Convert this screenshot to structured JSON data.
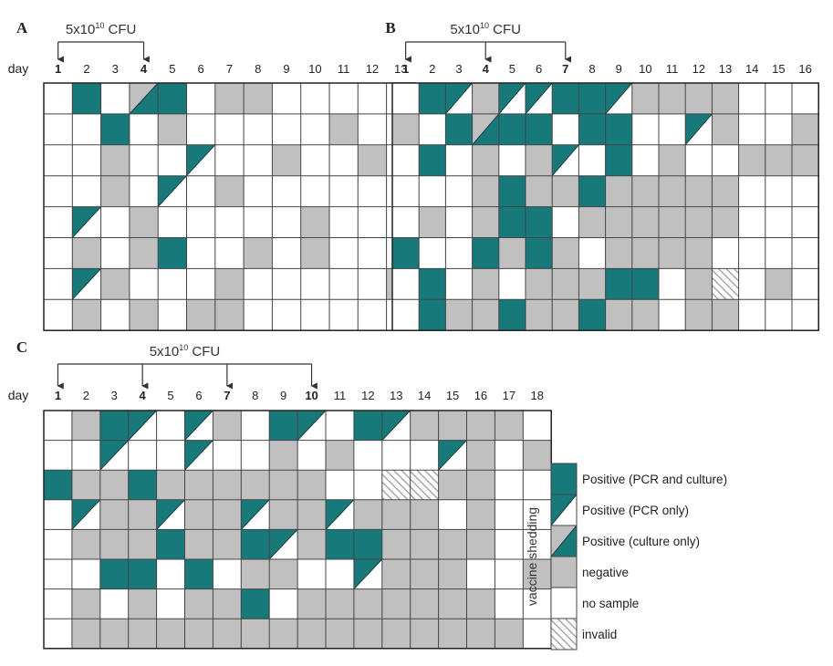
{
  "legend": {
    "side_label": "vaccine shedding",
    "items": [
      {
        "key": "P",
        "label": "Positive (PCR and culture)"
      },
      {
        "key": "R",
        "label": "Positive (PCR only)"
      },
      {
        "key": "C",
        "label": "Positive (culture only)"
      },
      {
        "key": "N",
        "label": "negative"
      },
      {
        "key": "W",
        "label": "no sample"
      },
      {
        "key": "I",
        "label": "invalid"
      }
    ]
  },
  "colors": {
    "positive": "#17797a",
    "negative": "#c0c0c0",
    "no_sample": "#ffffff",
    "grid": "#444444",
    "invalid_hatch": "#9a9a9a"
  },
  "panels": [
    {
      "letter": "A",
      "day_label": "day",
      "dose_text": "5x10",
      "dose_exp": "10",
      "dose_unit": "CFU",
      "dose_days": [
        1,
        4
      ],
      "days": [
        "1",
        "2",
        "3",
        "4",
        "5",
        "6",
        "7",
        "8",
        "9",
        "10",
        "11",
        "12",
        "13"
      ],
      "rows": [
        [
          "W",
          "P",
          "W",
          "C",
          "P",
          "W",
          "N",
          "N",
          "W",
          "W",
          "W",
          "W",
          "W"
        ],
        [
          "W",
          "W",
          "P",
          "W",
          "N",
          "W",
          "W",
          "W",
          "W",
          "W",
          "N",
          "W",
          "W"
        ],
        [
          "W",
          "W",
          "N",
          "W",
          "W",
          "R",
          "W",
          "W",
          "N",
          "W",
          "W",
          "N",
          "W"
        ],
        [
          "W",
          "W",
          "N",
          "W",
          "R",
          "W",
          "N",
          "W",
          "W",
          "W",
          "W",
          "W",
          "W"
        ],
        [
          "W",
          "R",
          "W",
          "N",
          "W",
          "W",
          "W",
          "W",
          "W",
          "N",
          "W",
          "W",
          "W"
        ],
        [
          "W",
          "N",
          "W",
          "N",
          "P",
          "W",
          "W",
          "N",
          "W",
          "N",
          "W",
          "W",
          "W"
        ],
        [
          "W",
          "R",
          "N",
          "W",
          "W",
          "W",
          "N",
          "W",
          "W",
          "W",
          "W",
          "W",
          "N"
        ],
        [
          "W",
          "N",
          "W",
          "N",
          "W",
          "N",
          "N",
          "W",
          "W",
          "W",
          "W",
          "W",
          "W"
        ]
      ]
    },
    {
      "letter": "B",
      "day_label": "",
      "dose_text": "5x10",
      "dose_exp": "10",
      "dose_unit": "CFU",
      "dose_days": [
        1,
        4,
        7
      ],
      "days": [
        "1",
        "2",
        "3",
        "4",
        "5",
        "6",
        "7",
        "8",
        "9",
        "10",
        "11",
        "12",
        "13",
        "14",
        "15",
        "16"
      ],
      "rows": [
        [
          "W",
          "P",
          "R",
          "N",
          "R",
          "R",
          "P",
          "P",
          "R",
          "N",
          "N",
          "N",
          "N",
          "W",
          "W",
          "W"
        ],
        [
          "N",
          "W",
          "P",
          "C",
          "P",
          "P",
          "W",
          "P",
          "P",
          "W",
          "W",
          "R",
          "N",
          "W",
          "W",
          "N"
        ],
        [
          "W",
          "P",
          "W",
          "N",
          "W",
          "N",
          "R",
          "W",
          "P",
          "W",
          "N",
          "W",
          "W",
          "N",
          "N",
          "N"
        ],
        [
          "W",
          "W",
          "W",
          "N",
          "P",
          "N",
          "N",
          "P",
          "N",
          "N",
          "N",
          "N",
          "N",
          "W",
          "W",
          "W"
        ],
        [
          "W",
          "N",
          "W",
          "N",
          "P",
          "P",
          "W",
          "N",
          "N",
          "N",
          "N",
          "N",
          "N",
          "W",
          "W",
          "W"
        ],
        [
          "P",
          "W",
          "W",
          "P",
          "N",
          "P",
          "N",
          "W",
          "N",
          "N",
          "N",
          "N",
          "W",
          "W",
          "W",
          "W"
        ],
        [
          "W",
          "P",
          "W",
          "N",
          "W",
          "N",
          "N",
          "N",
          "P",
          "P",
          "W",
          "N",
          "I",
          "W",
          "N",
          "W"
        ],
        [
          "W",
          "P",
          "N",
          "N",
          "P",
          "N",
          "N",
          "P",
          "N",
          "N",
          "W",
          "N",
          "N",
          "W",
          "W",
          "W"
        ]
      ]
    },
    {
      "letter": "C",
      "day_label": "day",
      "dose_text": "5x10",
      "dose_exp": "10",
      "dose_unit": "CFU",
      "dose_days": [
        1,
        4,
        7,
        10
      ],
      "days": [
        "1",
        "2",
        "3",
        "4",
        "5",
        "6",
        "7",
        "8",
        "9",
        "10",
        "11",
        "12",
        "13",
        "14",
        "15",
        "16",
        "17",
        "18"
      ],
      "rows": [
        [
          "W",
          "N",
          "P",
          "R",
          "W",
          "R",
          "N",
          "W",
          "P",
          "R",
          "W",
          "P",
          "R",
          "N",
          "N",
          "N",
          "N",
          "W"
        ],
        [
          "W",
          "W",
          "R",
          "W",
          "W",
          "R",
          "W",
          "W",
          "N",
          "W",
          "N",
          "W",
          "W",
          "W",
          "R",
          "N",
          "W",
          "N"
        ],
        [
          "P",
          "N",
          "N",
          "P",
          "N",
          "N",
          "N",
          "N",
          "N",
          "N",
          "W",
          "W",
          "I",
          "I",
          "N",
          "N",
          "W",
          "W"
        ],
        [
          "W",
          "R",
          "N",
          "N",
          "R",
          "N",
          "N",
          "R",
          "N",
          "N",
          "R",
          "N",
          "N",
          "N",
          "W",
          "N",
          "W",
          "W"
        ],
        [
          "W",
          "N",
          "N",
          "N",
          "P",
          "N",
          "N",
          "P",
          "R",
          "N",
          "P",
          "P",
          "N",
          "N",
          "N",
          "N",
          "W",
          "W"
        ],
        [
          "W",
          "W",
          "P",
          "P",
          "W",
          "P",
          "W",
          "N",
          "N",
          "W",
          "W",
          "R",
          "N",
          "N",
          "N",
          "W",
          "W",
          "N"
        ],
        [
          "W",
          "N",
          "W",
          "N",
          "W",
          "N",
          "N",
          "P",
          "W",
          "N",
          "N",
          "N",
          "N",
          "N",
          "N",
          "N",
          "W",
          "W"
        ],
        [
          "W",
          "N",
          "N",
          "N",
          "N",
          "N",
          "N",
          "N",
          "N",
          "N",
          "N",
          "N",
          "N",
          "N",
          "N",
          "N",
          "N",
          "W"
        ]
      ]
    }
  ]
}
